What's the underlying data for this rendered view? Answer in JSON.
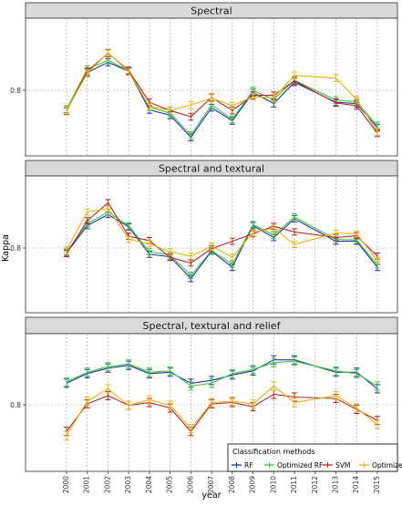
{
  "chart_data": {
    "type": "line",
    "ylabel": "Kappa",
    "xlabel": "year",
    "years": [
      2000,
      2001,
      2002,
      2003,
      2004,
      2005,
      2006,
      2007,
      2008,
      2009,
      2010,
      2011,
      2012,
      2013,
      2014,
      2015
    ],
    "ytick_label": "0.8",
    "legend": {
      "title": "Classification methods",
      "position": "bottom-right",
      "entries": [
        "RF",
        "Optimized RF",
        "SVM",
        "Optimized SVM"
      ]
    },
    "colors": {
      "RF": "#1f35a8",
      "Optimized RF": "#3ec43e",
      "SVM": "#b8262a",
      "Optimized SVM": "#e3b40f",
      "strip_bg": "#d9d9d9",
      "grid": "#999999"
    },
    "panels": [
      {
        "title": "Spectral",
        "ylim": [
          0.72,
          0.92
        ],
        "series": [
          {
            "name": "RF",
            "x": [
              2000,
              2001,
              2002,
              2003,
              2004,
              2005,
              2006,
              2007,
              2008,
              2009,
              2010,
              2011,
              2013,
              2014,
              2015
            ],
            "y": [
              0.786,
              0.841,
              0.856,
              0.843,
              0.787,
              0.779,
              0.747,
              0.79,
              0.771,
              0.812,
              0.796,
              0.827,
              0.798,
              0.796,
              0.761
            ],
            "err": [
              0.005,
              0.005,
              0.005,
              0.005,
              0.005,
              0.005,
              0.005,
              0.005,
              0.005,
              0.005,
              0.005,
              0.005,
              0.005,
              0.005,
              0.005
            ]
          },
          {
            "name": "Optimized RF",
            "x": [
              2000,
              2001,
              2002,
              2003,
              2004,
              2005,
              2006,
              2007,
              2008,
              2009,
              2010,
              2011,
              2013,
              2014,
              2015
            ],
            "y": [
              0.788,
              0.846,
              0.859,
              0.844,
              0.791,
              0.782,
              0.75,
              0.794,
              0.773,
              0.815,
              0.802,
              0.83,
              0.801,
              0.799,
              0.764
            ],
            "err": [
              0.005,
              0.005,
              0.005,
              0.005,
              0.005,
              0.005,
              0.005,
              0.005,
              0.005,
              0.005,
              0.005,
              0.005,
              0.005,
              0.005,
              0.005
            ]
          },
          {
            "name": "SVM",
            "x": [
              2000,
              2001,
              2002,
              2003,
              2004,
              2005,
              2006,
              2007,
              2008,
              2009,
              2010,
              2011,
              2013,
              2014,
              2015
            ],
            "y": [
              0.785,
              0.843,
              0.869,
              0.844,
              0.798,
              0.786,
              0.777,
              0.805,
              0.786,
              0.808,
              0.808,
              0.829,
              0.797,
              0.793,
              0.753
            ],
            "err": [
              0.005,
              0.005,
              0.005,
              0.005,
              0.005,
              0.005,
              0.005,
              0.005,
              0.005,
              0.005,
              0.005,
              0.005,
              0.005,
              0.005,
              0.005
            ]
          },
          {
            "name": "Optimized SVM",
            "x": [
              2000,
              2001,
              2002,
              2003,
              2004,
              2005,
              2006,
              2007,
              2008,
              2009,
              2010,
              2011,
              2013,
              2014,
              2015
            ],
            "y": [
              0.786,
              0.84,
              0.87,
              0.842,
              0.792,
              0.786,
              0.794,
              0.804,
              0.793,
              0.806,
              0.804,
              0.837,
              0.833,
              0.802,
              0.755
            ],
            "err": [
              0.005,
              0.005,
              0.005,
              0.005,
              0.005,
              0.005,
              0.005,
              0.005,
              0.005,
              0.005,
              0.005,
              0.005,
              0.005,
              0.005,
              0.005
            ]
          }
        ]
      },
      {
        "title": "Spectral and textural",
        "ylim": [
          0.68,
          0.9
        ],
        "series": [
          {
            "name": "RF",
            "x": [
              2000,
              2001,
              2002,
              2003,
              2004,
              2005,
              2006,
              2007,
              2008,
              2009,
              2010,
              2011,
              2013,
              2014,
              2015
            ],
            "y": [
              0.776,
              0.82,
              0.838,
              0.818,
              0.774,
              0.77,
              0.735,
              0.779,
              0.753,
              0.82,
              0.801,
              0.831,
              0.795,
              0.795,
              0.753
            ],
            "err": [
              0.005,
              0.005,
              0.005,
              0.005,
              0.005,
              0.005,
              0.005,
              0.005,
              0.005,
              0.005,
              0.005,
              0.005,
              0.005,
              0.005,
              0.005
            ]
          },
          {
            "name": "Optimized RF",
            "x": [
              2000,
              2001,
              2002,
              2003,
              2004,
              2005,
              2006,
              2007,
              2008,
              2009,
              2010,
              2011,
              2013,
              2014,
              2015
            ],
            "y": [
              0.778,
              0.823,
              0.842,
              0.82,
              0.778,
              0.773,
              0.74,
              0.78,
              0.758,
              0.822,
              0.805,
              0.834,
              0.798,
              0.797,
              0.757
            ],
            "err": [
              0.005,
              0.005,
              0.005,
              0.005,
              0.005,
              0.005,
              0.005,
              0.005,
              0.005,
              0.005,
              0.005,
              0.005,
              0.005,
              0.005,
              0.005
            ]
          },
          {
            "name": "SVM",
            "x": [
              2000,
              2001,
              2002,
              2003,
              2004,
              2005,
              2006,
              2007,
              2008,
              2009,
              2010,
              2011,
              2013,
              2014,
              2015
            ],
            "y": [
              0.775,
              0.828,
              0.857,
              0.803,
              0.796,
              0.769,
              0.76,
              0.783,
              0.795,
              0.807,
              0.819,
              0.81,
              0.801,
              0.804,
              0.771
            ],
            "err": [
              0.005,
              0.005,
              0.005,
              0.005,
              0.005,
              0.005,
              0.005,
              0.005,
              0.005,
              0.005,
              0.005,
              0.005,
              0.005,
              0.005,
              0.005
            ]
          },
          {
            "name": "Optimized SVM",
            "x": [
              2000,
              2001,
              2002,
              2003,
              2004,
              2005,
              2006,
              2007,
              2008,
              2009,
              2010,
              2011,
              2013,
              2014,
              2015
            ],
            "y": [
              0.781,
              0.842,
              0.848,
              0.798,
              0.791,
              0.778,
              0.771,
              0.787,
              0.769,
              0.809,
              0.816,
              0.79,
              0.808,
              0.807,
              0.764
            ],
            "err": [
              0.005,
              0.005,
              0.005,
              0.005,
              0.005,
              0.005,
              0.005,
              0.005,
              0.005,
              0.005,
              0.005,
              0.005,
              0.005,
              0.005,
              0.005
            ]
          }
        ]
      },
      {
        "title": "Spectral, textural and relief",
        "ylim": [
          0.76,
          0.86
        ],
        "series": [
          {
            "name": "RF",
            "x": [
              2000,
              2001,
              2002,
              2003,
              2004,
              2005,
              2006,
              2007,
              2008,
              2009,
              2010,
              2011,
              2013,
              2014,
              2015
            ],
            "y": [
              0.824,
              0.831,
              0.835,
              0.837,
              0.831,
              0.832,
              0.824,
              0.826,
              0.83,
              0.833,
              0.841,
              0.841,
              0.832,
              0.832,
              0.82
            ],
            "err": [
              0.003,
              0.003,
              0.003,
              0.003,
              0.003,
              0.003,
              0.003,
              0.003,
              0.003,
              0.003,
              0.003,
              0.003,
              0.003,
              0.003,
              0.003
            ]
          },
          {
            "name": "Optimized RF",
            "x": [
              2000,
              2001,
              2002,
              2003,
              2004,
              2005,
              2006,
              2007,
              2008,
              2009,
              2010,
              2011,
              2013,
              2014,
              2015
            ],
            "y": [
              0.825,
              0.832,
              0.836,
              0.838,
              0.832,
              0.833,
              0.822,
              0.824,
              0.831,
              0.834,
              0.839,
              0.84,
              0.833,
              0.831,
              0.822
            ],
            "err": [
              0.003,
              0.003,
              0.003,
              0.003,
              0.003,
              0.003,
              0.003,
              0.003,
              0.003,
              0.003,
              0.003,
              0.003,
              0.003,
              0.003,
              0.003
            ]
          },
          {
            "name": "SVM",
            "x": [
              2000,
              2001,
              2002,
              2003,
              2004,
              2005,
              2006,
              2007,
              2008,
              2009,
              2010,
              2011,
              2013,
              2014,
              2015
            ],
            "y": [
              0.789,
              0.809,
              0.815,
              0.808,
              0.81,
              0.806,
              0.789,
              0.809,
              0.81,
              0.807,
              0.816,
              0.814,
              0.813,
              0.805,
              0.797
            ],
            "err": [
              0.003,
              0.003,
              0.003,
              0.003,
              0.003,
              0.003,
              0.003,
              0.003,
              0.003,
              0.003,
              0.003,
              0.003,
              0.003,
              0.003,
              0.003
            ]
          },
          {
            "name": "Optimized SVM",
            "x": [
              2000,
              2001,
              2002,
              2003,
              2004,
              2005,
              2006,
              2007,
              2008,
              2009,
              2010,
              2011,
              2013,
              2014,
              2015
            ],
            "y": [
              0.786,
              0.811,
              0.82,
              0.808,
              0.812,
              0.808,
              0.791,
              0.81,
              0.811,
              0.809,
              0.822,
              0.81,
              0.815,
              0.806,
              0.794
            ],
            "err": [
              0.003,
              0.003,
              0.003,
              0.003,
              0.003,
              0.003,
              0.003,
              0.003,
              0.003,
              0.003,
              0.003,
              0.003,
              0.003,
              0.003,
              0.003
            ]
          }
        ]
      }
    ]
  }
}
